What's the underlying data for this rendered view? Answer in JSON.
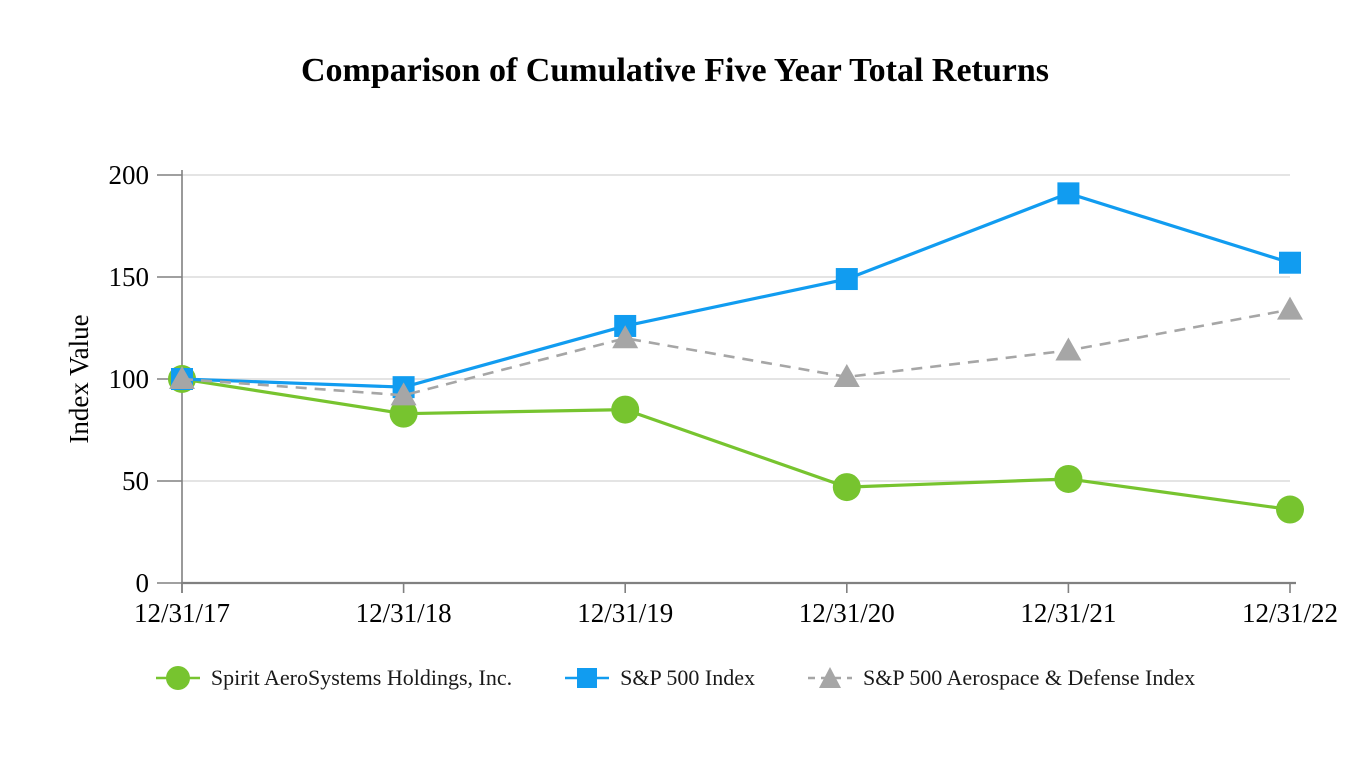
{
  "title": "Comparison of Cumulative Five Year Total Returns",
  "chart_data": {
    "type": "line",
    "title": "Comparison of Cumulative Five Year Total Returns",
    "xlabel": "",
    "ylabel": "Index Value",
    "categories": [
      "12/31/17",
      "12/31/18",
      "12/31/19",
      "12/31/20",
      "12/31/21",
      "12/31/22"
    ],
    "series": [
      {
        "name": "Spirit AeroSystems Holdings, Inc.",
        "marker": "circle",
        "line_style": "solid",
        "color": "#77C42F",
        "values": [
          100,
          83,
          85,
          47,
          51,
          36
        ]
      },
      {
        "name": "S&P 500 Index",
        "marker": "square",
        "line_style": "solid",
        "color": "#119CF0",
        "values": [
          100,
          96,
          126,
          149,
          191,
          157
        ]
      },
      {
        "name": "S&P 500 Aerospace & Defense Index",
        "marker": "triangle",
        "line_style": "dashed",
        "color": "#A6A6A6",
        "values": [
          100,
          92,
          120,
          101,
          114,
          134
        ]
      }
    ],
    "ylim": [
      0,
      200
    ],
    "yticks": [
      0,
      50,
      100,
      150,
      200
    ],
    "grid": "horizontal",
    "legend_position": "bottom"
  },
  "colors": {
    "gridline": "#DBDBDB",
    "axis": "#808080",
    "text": "#000000"
  }
}
